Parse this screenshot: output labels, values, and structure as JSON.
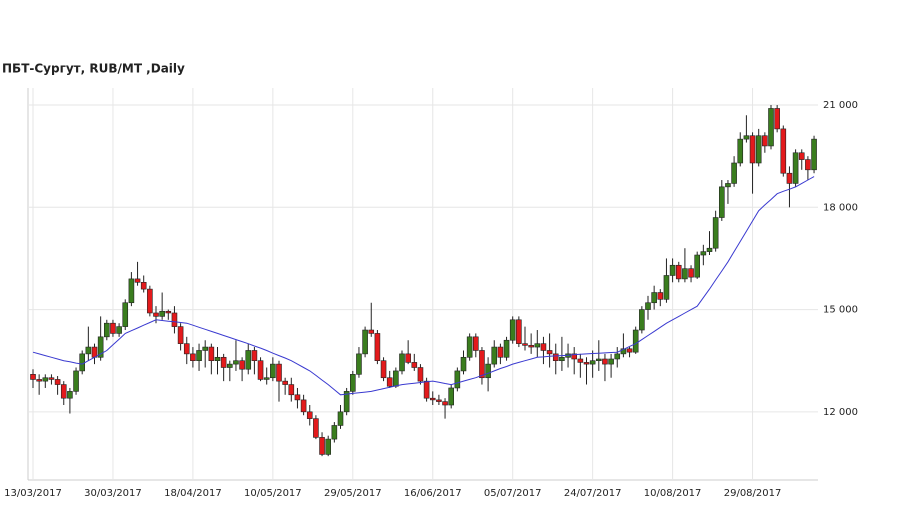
{
  "chart_data": {
    "type": "candlestick",
    "title": "ПБТ-Сургут,  RUB/MT ,Daily",
    "up_color": "#3a7d1e",
    "down_color": "#e31a1c",
    "ma_color": "#3a3ad0",
    "grid": true,
    "ylim": [
      10000,
      21500
    ],
    "yticks": [
      {
        "value": 12000,
        "label": "12 000"
      },
      {
        "value": 15000,
        "label": "15 000"
      },
      {
        "value": 18000,
        "label": "18 000"
      },
      {
        "value": 21000,
        "label": "21 000"
      }
    ],
    "categories": [
      "13/03/2017",
      null,
      null,
      null,
      null,
      null,
      null,
      null,
      null,
      null,
      null,
      null,
      null,
      "30/03/2017",
      null,
      null,
      null,
      null,
      null,
      null,
      null,
      null,
      null,
      null,
      null,
      null,
      "18/04/2017",
      null,
      null,
      null,
      null,
      null,
      null,
      null,
      null,
      null,
      null,
      null,
      null,
      "10/05/2017",
      null,
      null,
      null,
      null,
      null,
      null,
      null,
      null,
      null,
      null,
      null,
      null,
      "29/05/2017",
      null,
      null,
      null,
      null,
      null,
      null,
      null,
      null,
      null,
      null,
      null,
      null,
      "16/06/2017",
      null,
      null,
      null,
      null,
      null,
      null,
      null,
      null,
      null,
      null,
      null,
      null,
      "05/07/2017",
      null,
      null,
      null,
      null,
      null,
      null,
      null,
      null,
      null,
      null,
      null,
      null,
      "24/07/2017",
      null,
      null,
      null,
      null,
      null,
      null,
      null,
      null,
      null,
      null,
      null,
      null,
      "10/08/2017",
      null,
      null,
      null,
      null,
      null,
      null,
      null,
      null,
      null,
      null,
      null,
      null,
      "29/08/2017",
      null,
      null,
      null,
      null,
      null,
      null,
      null,
      null,
      null,
      null
    ],
    "ohlc": [
      [
        13100,
        13250,
        12700,
        12950
      ],
      [
        12950,
        13100,
        12500,
        12900
      ],
      [
        12900,
        13100,
        12700,
        13000
      ],
      [
        13000,
        13100,
        12800,
        12950
      ],
      [
        12950,
        13050,
        12500,
        12800
      ],
      [
        12800,
        12900,
        12200,
        12400
      ],
      [
        12400,
        12700,
        11950,
        12600
      ],
      [
        12600,
        13300,
        12500,
        13200
      ],
      [
        13200,
        13800,
        13100,
        13700
      ],
      [
        13700,
        14500,
        13500,
        13900
      ],
      [
        13900,
        14000,
        13400,
        13600
      ],
      [
        13600,
        14800,
        13500,
        14200
      ],
      [
        14200,
        14700,
        14100,
        14600
      ],
      [
        14600,
        14700,
        14200,
        14300
      ],
      [
        14300,
        14600,
        14200,
        14500
      ],
      [
        14500,
        15300,
        14400,
        15200
      ],
      [
        15200,
        16100,
        15100,
        15900
      ],
      [
        15900,
        16400,
        15700,
        15800
      ],
      [
        15800,
        16000,
        15500,
        15600
      ],
      [
        15600,
        15700,
        14800,
        14900
      ],
      [
        14900,
        15100,
        14600,
        14800
      ],
      [
        14800,
        15500,
        14700,
        14950
      ],
      [
        14950,
        15000,
        14700,
        14900
      ],
      [
        14900,
        15100,
        14300,
        14500
      ],
      [
        14500,
        14600,
        13800,
        14000
      ],
      [
        14000,
        14200,
        13400,
        13700
      ],
      [
        13700,
        13900,
        13300,
        13500
      ],
      [
        13500,
        14000,
        13200,
        13800
      ],
      [
        13800,
        14100,
        13300,
        13900
      ],
      [
        13900,
        14000,
        13100,
        13500
      ],
      [
        13500,
        13900,
        13100,
        13600
      ],
      [
        13600,
        13700,
        12900,
        13300
      ],
      [
        13300,
        13500,
        12900,
        13400
      ],
      [
        13400,
        14100,
        13200,
        13500
      ],
      [
        13500,
        13600,
        12900,
        13250
      ],
      [
        13250,
        14000,
        13100,
        13800
      ],
      [
        13800,
        13900,
        13100,
        13500
      ],
      [
        13500,
        13600,
        12900,
        12950
      ],
      [
        12950,
        13300,
        12800,
        13000
      ],
      [
        13000,
        13600,
        12900,
        13400
      ],
      [
        13400,
        13500,
        12300,
        12900
      ],
      [
        12900,
        13000,
        12500,
        12800
      ],
      [
        12800,
        13000,
        12300,
        12500
      ],
      [
        12500,
        12700,
        12100,
        12350
      ],
      [
        12350,
        12500,
        11900,
        12000
      ],
      [
        12000,
        12200,
        11600,
        11800
      ],
      [
        11800,
        11900,
        11200,
        11250
      ],
      [
        11250,
        11400,
        10700,
        10750
      ],
      [
        10750,
        11300,
        10700,
        11200
      ],
      [
        11200,
        11700,
        11100,
        11600
      ],
      [
        11600,
        12200,
        11500,
        12000
      ],
      [
        12000,
        12700,
        11900,
        12600
      ],
      [
        12600,
        13200,
        12500,
        13100
      ],
      [
        13100,
        13900,
        13000,
        13700
      ],
      [
        13700,
        14500,
        13600,
        14400
      ],
      [
        14400,
        15200,
        14200,
        14300
      ],
      [
        14300,
        14400,
        13400,
        13500
      ],
      [
        13500,
        13600,
        12900,
        13000
      ],
      [
        13000,
        13200,
        12700,
        12750
      ],
      [
        12750,
        13300,
        12700,
        13200
      ],
      [
        13200,
        13800,
        13100,
        13700
      ],
      [
        13700,
        14100,
        13400,
        13450
      ],
      [
        13450,
        13700,
        13200,
        13300
      ],
      [
        13300,
        13400,
        12800,
        12900
      ],
      [
        12900,
        13000,
        12300,
        12400
      ],
      [
        12400,
        12600,
        12200,
        12350
      ],
      [
        12350,
        12500,
        12200,
        12300
      ],
      [
        12300,
        12400,
        11800,
        12200
      ],
      [
        12200,
        12800,
        12100,
        12700
      ],
      [
        12700,
        13300,
        12600,
        13200
      ],
      [
        13200,
        13800,
        13100,
        13600
      ],
      [
        13600,
        14300,
        13500,
        14200
      ],
      [
        14200,
        14300,
        13600,
        13800
      ],
      [
        13800,
        13900,
        12800,
        13000
      ],
      [
        13000,
        13600,
        12600,
        13400
      ],
      [
        13400,
        14100,
        13300,
        13900
      ],
      [
        13900,
        14000,
        13400,
        13600
      ],
      [
        13600,
        14200,
        13500,
        14100
      ],
      [
        14100,
        14800,
        14000,
        14700
      ],
      [
        14700,
        14800,
        13900,
        14000
      ],
      [
        14000,
        14500,
        13800,
        13950
      ],
      [
        13950,
        14300,
        13700,
        13900
      ],
      [
        13900,
        14400,
        13600,
        14000
      ],
      [
        14000,
        14200,
        13400,
        13800
      ],
      [
        13800,
        14300,
        13300,
        13700
      ],
      [
        13700,
        14000,
        13100,
        13500
      ],
      [
        13500,
        14200,
        13200,
        13600
      ],
      [
        13600,
        14000,
        13300,
        13700
      ],
      [
        13700,
        13900,
        13100,
        13550
      ],
      [
        13550,
        13700,
        13000,
        13450
      ],
      [
        13450,
        13600,
        12800,
        13400
      ],
      [
        13400,
        13800,
        13000,
        13500
      ],
      [
        13500,
        14100,
        13200,
        13550
      ],
      [
        13550,
        13700,
        12900,
        13400
      ],
      [
        13400,
        13700,
        13000,
        13550
      ],
      [
        13550,
        13900,
        13300,
        13700
      ],
      [
        13700,
        14300,
        13600,
        13850
      ],
      [
        13850,
        13900,
        13600,
        13750
      ],
      [
        13750,
        14500,
        13700,
        14400
      ],
      [
        14400,
        15100,
        14300,
        15000
      ],
      [
        15000,
        15400,
        14700,
        15200
      ],
      [
        15200,
        15700,
        15000,
        15500
      ],
      [
        15500,
        15600,
        15100,
        15300
      ],
      [
        15300,
        16500,
        15200,
        16000
      ],
      [
        16000,
        16500,
        15800,
        16300
      ],
      [
        16300,
        16400,
        15800,
        15900
      ],
      [
        15900,
        16800,
        15800,
        16200
      ],
      [
        16200,
        16300,
        15800,
        15950
      ],
      [
        15950,
        16700,
        15900,
        16600
      ],
      [
        16600,
        16900,
        16300,
        16700
      ],
      [
        16700,
        17300,
        16600,
        16800
      ],
      [
        16800,
        17900,
        16700,
        17700
      ],
      [
        17700,
        18800,
        17600,
        18600
      ],
      [
        18600,
        18800,
        18100,
        18700
      ],
      [
        18700,
        19500,
        18600,
        19300
      ],
      [
        19300,
        20200,
        19200,
        20000
      ],
      [
        20000,
        20700,
        19900,
        20100
      ],
      [
        20100,
        20200,
        18400,
        19300
      ],
      [
        19300,
        20300,
        19200,
        20100
      ],
      [
        20100,
        20200,
        19600,
        19800
      ],
      [
        19800,
        21000,
        19700,
        20900
      ],
      [
        20900,
        21000,
        20200,
        20300
      ],
      [
        20300,
        20400,
        18900,
        19000
      ],
      [
        19000,
        19200,
        18000,
        18700
      ],
      [
        18700,
        19700,
        18600,
        19600
      ],
      [
        19600,
        19700,
        19100,
        19400
      ],
      [
        19400,
        19500,
        18800,
        19100
      ],
      [
        19100,
        20100,
        19000,
        20000
      ]
    ],
    "moving_average": [
      13750,
      13700,
      13650,
      13600,
      13550,
      13500,
      13470,
      13430,
      13400,
      13500,
      13600,
      13700,
      13800,
      13970,
      14130,
      14300,
      14380,
      14460,
      14540,
      14620,
      14700,
      14680,
      14660,
      14640,
      14620,
      14600,
      14540,
      14480,
      14420,
      14360,
      14300,
      14240,
      14180,
      14120,
      14060,
      14000,
      13930,
      13870,
      13800,
      13720,
      13650,
      13580,
      13500,
      13400,
      13300,
      13200,
      13070,
      12930,
      12800,
      12650,
      12500,
      12520,
      12540,
      12560,
      12580,
      12600,
      12640,
      12680,
      12720,
      12760,
      12800,
      12820,
      12840,
      12860,
      12880,
      12900,
      12870,
      12830,
      12800,
      12850,
      12900,
      12950,
      13000,
      13070,
      13130,
      13200,
      13270,
      13330,
      13400,
      13450,
      13500,
      13550,
      13600,
      13610,
      13630,
      13640,
      13650,
      13660,
      13680,
      13690,
      13700,
      13710,
      13720,
      13730,
      13740,
      13750,
      13830,
      13920,
      14000,
      14120,
      14240,
      14360,
      14480,
      14600,
      14700,
      14800,
      14900,
      15000,
      15100,
      15350,
      15600,
      15870,
      16130,
      16400,
      16700,
      17000,
      17300,
      17600,
      17900,
      18070,
      18230,
      18400,
      18470,
      18530,
      18600,
      18700,
      18800,
      18900
    ]
  }
}
